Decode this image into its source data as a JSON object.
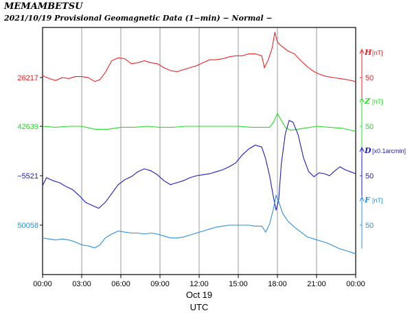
{
  "header": {
    "station": "MEMAMBETSU",
    "subtitle": "2021/10/19  Provisional Geomagnetic Data (1−min)  − Normal −"
  },
  "colors": {
    "H": "#ee2222",
    "Z": "#22dd22",
    "D": "#1a1acc",
    "F": "#2d8fe0"
  },
  "chart_data": {
    "type": "line",
    "x_ticks": [
      "00:00",
      "03:00",
      "06:00",
      "09:00",
      "12:00",
      "15:00",
      "18:00",
      "21:00",
      "00:00"
    ],
    "xlim_hours": [
      0,
      24
    ],
    "date_label": "Oct 19",
    "xlabel": "UTC",
    "grid": true,
    "channels": [
      {
        "key": "H",
        "label": "H",
        "unit": "[nT]",
        "base": "26217",
        "scale_value": "50",
        "points": [
          [
            0,
            2
          ],
          [
            0.5,
            -1
          ],
          [
            1,
            -3
          ],
          [
            1.5,
            0
          ],
          [
            2,
            -1
          ],
          [
            2.5,
            1
          ],
          [
            3,
            1
          ],
          [
            3.5,
            0
          ],
          [
            4,
            -4
          ],
          [
            4.4,
            -2
          ],
          [
            4.8,
            5
          ],
          [
            5.3,
            17
          ],
          [
            5.8,
            20
          ],
          [
            6.3,
            19
          ],
          [
            6.8,
            14
          ],
          [
            7.3,
            15
          ],
          [
            7.8,
            17
          ],
          [
            8.3,
            15
          ],
          [
            8.8,
            14
          ],
          [
            9.3,
            10
          ],
          [
            9.8,
            7
          ],
          [
            10.3,
            6
          ],
          [
            10.8,
            8
          ],
          [
            11.3,
            10
          ],
          [
            11.8,
            12
          ],
          [
            12.3,
            15
          ],
          [
            12.8,
            18
          ],
          [
            13.3,
            18
          ],
          [
            13.8,
            19
          ],
          [
            14.3,
            21
          ],
          [
            14.8,
            22
          ],
          [
            15.3,
            22
          ],
          [
            15.8,
            24
          ],
          [
            16.3,
            24
          ],
          [
            16.8,
            22
          ],
          [
            17.0,
            10
          ],
          [
            17.3,
            18
          ],
          [
            17.6,
            30
          ],
          [
            17.8,
            46
          ],
          [
            18.0,
            36
          ],
          [
            18.3,
            32
          ],
          [
            18.8,
            27
          ],
          [
            19.3,
            24
          ],
          [
            19.8,
            17
          ],
          [
            20.3,
            11
          ],
          [
            20.8,
            6
          ],
          [
            21.3,
            3
          ],
          [
            21.8,
            1
          ],
          [
            22.3,
            0
          ],
          [
            22.8,
            -1
          ],
          [
            23.3,
            -2
          ],
          [
            24,
            -4
          ]
        ]
      },
      {
        "key": "Z",
        "label": "Z",
        "unit": "[nT]",
        "base": "42639",
        "scale_value": "50",
        "points": [
          [
            0,
            0
          ],
          [
            1,
            -1
          ],
          [
            2,
            0
          ],
          [
            3,
            0
          ],
          [
            4,
            -3
          ],
          [
            5,
            -3
          ],
          [
            6,
            -1
          ],
          [
            7,
            -1
          ],
          [
            8,
            0
          ],
          [
            9,
            -1
          ],
          [
            10,
            -1
          ],
          [
            11,
            0
          ],
          [
            12,
            0
          ],
          [
            13,
            0
          ],
          [
            14,
            0
          ],
          [
            15,
            0
          ],
          [
            16,
            -1
          ],
          [
            17,
            -1
          ],
          [
            17.4,
            -1
          ],
          [
            17.7,
            4
          ],
          [
            18.0,
            13
          ],
          [
            18.3,
            6
          ],
          [
            18.6,
            -1
          ],
          [
            19,
            -4
          ],
          [
            20,
            -2
          ],
          [
            21,
            0
          ],
          [
            22,
            -1
          ],
          [
            23,
            -2
          ],
          [
            24,
            -5
          ]
        ]
      },
      {
        "key": "D",
        "label": "D",
        "unit": "[x0.1arcmin]",
        "base": "−5521",
        "scale_value": "50",
        "points": [
          [
            0,
            -10
          ],
          [
            0.3,
            -2
          ],
          [
            0.8,
            -5
          ],
          [
            1.3,
            -7
          ],
          [
            1.8,
            -11
          ],
          [
            2.3,
            -14
          ],
          [
            2.8,
            -20
          ],
          [
            3.3,
            -27
          ],
          [
            3.8,
            -30
          ],
          [
            4.3,
            -33
          ],
          [
            4.8,
            -27
          ],
          [
            5.3,
            -18
          ],
          [
            5.8,
            -9
          ],
          [
            6.3,
            -4
          ],
          [
            6.8,
            -1
          ],
          [
            7.3,
            4
          ],
          [
            7.8,
            7
          ],
          [
            8.3,
            5
          ],
          [
            8.8,
            1
          ],
          [
            9.3,
            -5
          ],
          [
            9.8,
            -9
          ],
          [
            10.3,
            -7
          ],
          [
            10.8,
            -5
          ],
          [
            11.3,
            -2
          ],
          [
            11.8,
            0
          ],
          [
            12.3,
            1
          ],
          [
            12.8,
            2
          ],
          [
            13.3,
            4
          ],
          [
            13.8,
            6
          ],
          [
            14.3,
            9
          ],
          [
            14.8,
            13
          ],
          [
            15.3,
            21
          ],
          [
            15.8,
            27
          ],
          [
            16.3,
            31
          ],
          [
            16.8,
            29
          ],
          [
            17.1,
            17
          ],
          [
            17.4,
            0
          ],
          [
            17.7,
            -22
          ],
          [
            17.9,
            -35
          ],
          [
            18.1,
            -24
          ],
          [
            18.3,
            12
          ],
          [
            18.6,
            42
          ],
          [
            18.9,
            56
          ],
          [
            19.2,
            54
          ],
          [
            19.6,
            41
          ],
          [
            20.0,
            18
          ],
          [
            20.4,
            4
          ],
          [
            20.8,
            -1
          ],
          [
            21.2,
            3
          ],
          [
            21.6,
            2
          ],
          [
            22.0,
            0
          ],
          [
            22.4,
            5
          ],
          [
            22.8,
            9
          ],
          [
            23.2,
            6
          ],
          [
            23.6,
            4
          ],
          [
            24,
            2
          ]
        ]
      },
      {
        "key": "F",
        "label": "F",
        "unit": "[nT]",
        "base": "50058",
        "scale_value": "50",
        "points": [
          [
            0,
            -13
          ],
          [
            0.5,
            -14
          ],
          [
            1,
            -15
          ],
          [
            1.5,
            -14
          ],
          [
            2,
            -15
          ],
          [
            2.5,
            -17
          ],
          [
            3,
            -20
          ],
          [
            3.5,
            -21
          ],
          [
            4,
            -23
          ],
          [
            4.4,
            -20
          ],
          [
            4.8,
            -13
          ],
          [
            5.3,
            -9
          ],
          [
            5.8,
            -6
          ],
          [
            6.3,
            -7
          ],
          [
            6.8,
            -8
          ],
          [
            7.3,
            -8
          ],
          [
            7.8,
            -9
          ],
          [
            8.3,
            -8
          ],
          [
            8.8,
            -9
          ],
          [
            9.3,
            -11
          ],
          [
            9.8,
            -13
          ],
          [
            10.3,
            -13
          ],
          [
            10.8,
            -12
          ],
          [
            11.3,
            -10
          ],
          [
            11.8,
            -8
          ],
          [
            12.3,
            -6
          ],
          [
            12.8,
            -4
          ],
          [
            13.3,
            -2
          ],
          [
            13.8,
            -1
          ],
          [
            14.3,
            0
          ],
          [
            14.8,
            0
          ],
          [
            15.3,
            0
          ],
          [
            15.8,
            0
          ],
          [
            16.3,
            -1
          ],
          [
            16.8,
            -1
          ],
          [
            17.1,
            -7
          ],
          [
            17.4,
            1
          ],
          [
            17.7,
            17
          ],
          [
            17.9,
            30
          ],
          [
            18.1,
            24
          ],
          [
            18.4,
            12
          ],
          [
            18.8,
            4
          ],
          [
            19.3,
            -2
          ],
          [
            19.8,
            -7
          ],
          [
            20.3,
            -12
          ],
          [
            20.8,
            -14
          ],
          [
            21.3,
            -16
          ],
          [
            21.8,
            -18
          ],
          [
            22.3,
            -21
          ],
          [
            22.8,
            -24
          ],
          [
            23.3,
            -26
          ],
          [
            24,
            -29
          ]
        ]
      }
    ]
  }
}
